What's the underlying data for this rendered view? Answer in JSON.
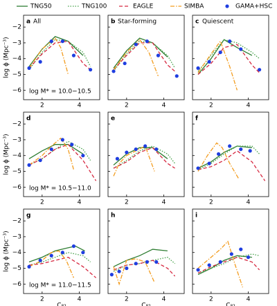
{
  "chart_data": [
    {
      "type": "line",
      "label": "a",
      "title": "All",
      "ylabel": "log ϕ (Mpc⁻³)",
      "legend": "top",
      "xlim": [
        1,
        5.1
      ],
      "ylim": [
        -6.6,
        -1.25
      ],
      "xticks": [
        2,
        4
      ],
      "yticks": [
        {
          "value": -2,
          "label": "−2"
        },
        {
          "value": -3,
          "label": "−3"
        },
        {
          "value": -4,
          "label": "−4"
        },
        {
          "value": -5,
          "label": "−5"
        },
        {
          "value": -6,
          "label": "−6"
        }
      ],
      "annotation": "log M* = 10.0−10.5",
      "series": [
        {
          "name": "TNG50",
          "color": "#2e7d32",
          "style": "solid",
          "x": [
            1.3,
            2.0,
            2.7,
            3.4,
            4.2
          ],
          "values": [
            -4.5,
            -3.4,
            -2.6,
            -2.9,
            -3.8
          ]
        },
        {
          "name": "TNG100",
          "color": "#43a047",
          "style": "dotted",
          "x": [
            1.3,
            2.0,
            2.7,
            3.4,
            4.2,
            4.6
          ],
          "values": [
            -4.7,
            -3.6,
            -2.8,
            -2.9,
            -3.6,
            -4.5
          ]
        },
        {
          "name": "EAGLE",
          "color": "#d62840",
          "style": "dashed",
          "x": [
            1.3,
            2.0,
            2.7,
            3.4,
            4.2,
            4.6
          ],
          "values": [
            -4.6,
            -3.7,
            -3.0,
            -2.9,
            -4.3,
            -4.7
          ]
        },
        {
          "name": "SIMBA",
          "color": "#f39c1e",
          "style": "dashdot",
          "x": [
            1.3,
            2.0,
            2.7,
            3.0,
            3.4
          ],
          "values": [
            -4.6,
            -3.4,
            -2.7,
            -3.3,
            -5.0
          ]
        },
        {
          "name": "GAMA+HSC",
          "color": "#1f3ee0",
          "style": "points",
          "x": [
            1.3,
            1.9,
            2.5,
            3.1,
            3.7,
            4.6
          ],
          "values": [
            -4.6,
            -4.2,
            -2.9,
            -2.9,
            -3.8,
            -4.7
          ]
        }
      ]
    },
    {
      "type": "line",
      "label": "b",
      "title": "Star-forming",
      "xlim": [
        1,
        5.1
      ],
      "ylim": [
        -6.6,
        -1.25
      ],
      "xticks": [
        2,
        4
      ],
      "yticks": [
        -2,
        -3,
        -4,
        -5,
        -6
      ],
      "series": [
        {
          "color": "#2e7d32",
          "style": "solid",
          "x": [
            1.3,
            2.0,
            2.7,
            3.4,
            4.2
          ],
          "values": [
            -4.6,
            -3.5,
            -2.7,
            -3.0,
            -3.9
          ]
        },
        {
          "color": "#43a047",
          "style": "dotted",
          "x": [
            1.3,
            2.0,
            2.7,
            3.4,
            4.2,
            4.6
          ],
          "values": [
            -4.8,
            -3.7,
            -2.9,
            -3.0,
            -3.8,
            -4.6
          ]
        },
        {
          "color": "#d62840",
          "style": "dashed",
          "x": [
            1.3,
            2.0,
            2.7,
            3.4,
            4.2,
            4.6
          ],
          "values": [
            -4.7,
            -3.8,
            -3.0,
            -3.0,
            -4.4,
            -4.8
          ]
        },
        {
          "color": "#f39c1e",
          "style": "dashdot",
          "x": [
            1.3,
            2.0,
            2.7,
            3.2,
            3.7
          ],
          "values": [
            -4.7,
            -3.6,
            -2.8,
            -3.6,
            -5.1
          ]
        },
        {
          "color": "#1f3ee0",
          "style": "points",
          "x": [
            1.3,
            1.9,
            2.5,
            3.1,
            3.7,
            4.7
          ],
          "values": [
            -4.8,
            -4.3,
            -3.1,
            -2.9,
            -3.8,
            -5.1
          ]
        }
      ]
    },
    {
      "type": "line",
      "label": "c",
      "title": "Quiescent",
      "xlim": [
        1,
        5.1
      ],
      "ylim": [
        -6.6,
        -1.25
      ],
      "xticks": [
        2,
        4
      ],
      "yticks": [
        -2,
        -3,
        -4,
        -5,
        -6
      ],
      "series": [
        {
          "color": "#2e7d32",
          "style": "solid",
          "x": [
            1.3,
            2.0,
            2.7,
            3.4,
            4.2
          ],
          "values": [
            -5.0,
            -4.0,
            -2.8,
            -3.3,
            -3.8
          ]
        },
        {
          "color": "#43a047",
          "style": "dotted",
          "x": [
            1.3,
            2.0,
            2.7,
            3.4,
            4.2,
            4.6
          ],
          "values": [
            -4.8,
            -3.8,
            -2.8,
            -3.0,
            -3.6,
            -4.0
          ]
        },
        {
          "color": "#d62840",
          "style": "dashed",
          "x": [
            1.3,
            2.0,
            2.7,
            3.4,
            4.2,
            4.6
          ],
          "values": [
            -5.0,
            -4.3,
            -3.3,
            -3.1,
            -4.4,
            -4.9
          ]
        },
        {
          "color": "#f39c1e",
          "style": "dashdot",
          "x": [
            1.3,
            2.0,
            2.5,
            3.0,
            3.4
          ],
          "values": [
            -4.9,
            -3.7,
            -2.9,
            -4.5,
            -6.0
          ]
        },
        {
          "color": "#1f3ee0",
          "style": "points",
          "x": [
            1.3,
            1.9,
            2.5,
            3.0,
            3.6,
            4.6
          ],
          "values": [
            -4.6,
            -4.2,
            -3.6,
            -2.9,
            -3.4,
            -4.7
          ]
        }
      ]
    },
    {
      "type": "line",
      "label": "d",
      "ylabel": "log ϕ (Mpc⁻³)",
      "xlim": [
        1,
        5.1
      ],
      "ylim": [
        -6.6,
        -1.25
      ],
      "xticks": [
        2,
        4
      ],
      "yticks": [
        {
          "value": -2,
          "label": "−2"
        },
        {
          "value": -3,
          "label": "−3"
        },
        {
          "value": -4,
          "label": "−4"
        },
        {
          "value": -5,
          "label": "−5"
        },
        {
          "value": -6,
          "label": "−6"
        }
      ],
      "annotation": "log M* = 10.5−11.0",
      "series": [
        {
          "color": "#2e7d32",
          "style": "solid",
          "x": [
            1.3,
            2.0,
            2.7,
            3.4,
            4.2
          ],
          "values": [
            -4.2,
            -3.7,
            -3.3,
            -3.3,
            -3.9
          ]
        },
        {
          "color": "#43a047",
          "style": "dotted",
          "x": [
            1.3,
            2.0,
            2.7,
            3.4,
            4.2,
            4.6
          ],
          "values": [
            -4.6,
            -4.2,
            -3.6,
            -3.1,
            -3.6,
            -4.3
          ]
        },
        {
          "color": "#d62840",
          "style": "dashed",
          "x": [
            1.3,
            2.0,
            2.7,
            3.4,
            4.2,
            4.9
          ],
          "values": [
            -4.6,
            -4.2,
            -3.6,
            -3.3,
            -4.3,
            -5.6
          ]
        },
        {
          "color": "#f39c1e",
          "style": "dashdot",
          "x": [
            1.3,
            2.0,
            2.5,
            3.0,
            3.4,
            3.7
          ],
          "values": [
            -4.6,
            -4.0,
            -3.4,
            -2.9,
            -3.6,
            -4.9
          ]
        },
        {
          "color": "#1f3ee0",
          "style": "points",
          "x": [
            1.3,
            1.9,
            2.5,
            3.1,
            3.6,
            4.2
          ],
          "values": [
            -4.6,
            -4.3,
            -3.6,
            -3.0,
            -3.3,
            -4.0
          ]
        }
      ]
    },
    {
      "type": "line",
      "label": "e",
      "xlim": [
        1,
        5.1
      ],
      "ylim": [
        -6.6,
        -1.25
      ],
      "xticks": [
        2,
        4
      ],
      "yticks": [
        -2,
        -3,
        -4,
        -5,
        -6
      ],
      "series": [
        {
          "color": "#2e7d32",
          "style": "solid",
          "x": [
            1.3,
            2.0,
            2.7,
            3.4,
            4.2
          ],
          "values": [
            -4.6,
            -3.9,
            -3.5,
            -3.5,
            -4.2
          ]
        },
        {
          "color": "#43a047",
          "style": "dotted",
          "x": [
            1.3,
            2.0,
            2.7,
            3.4,
            4.2,
            4.6
          ],
          "values": [
            -4.8,
            -4.3,
            -3.7,
            -3.4,
            -3.9,
            -4.5
          ]
        },
        {
          "color": "#d62840",
          "style": "dashed",
          "x": [
            1.3,
            2.0,
            2.7,
            3.4,
            4.2,
            4.6
          ],
          "values": [
            -4.8,
            -4.4,
            -3.8,
            -3.5,
            -4.5,
            -4.8
          ]
        },
        {
          "color": "#f39c1e",
          "style": "dashdot",
          "x": [
            1.3,
            1.6,
            2.0,
            2.5,
            3.0,
            3.5
          ],
          "values": [
            -5.3,
            -4.5,
            -4.0,
            -3.7,
            -3.4,
            -5.0
          ]
        },
        {
          "color": "#1f3ee0",
          "style": "points",
          "x": [
            1.5,
            2.0,
            2.5,
            3.0,
            3.6
          ],
          "values": [
            -4.2,
            -3.8,
            -3.6,
            -3.4,
            -3.6
          ]
        }
      ]
    },
    {
      "type": "line",
      "label": "f",
      "xlim": [
        1,
        5.1
      ],
      "ylim": [
        -6.6,
        -1.25
      ],
      "xticks": [
        2,
        4
      ],
      "yticks": [
        -2,
        -3,
        -4,
        -5,
        -6
      ],
      "series": [
        {
          "color": "#2e7d32",
          "style": "solid",
          "x": [
            1.3,
            2.0,
            2.7,
            3.4,
            4.2
          ],
          "values": [
            -4.8,
            -4.4,
            -3.8,
            -3.4,
            -3.5
          ]
        },
        {
          "color": "#43a047",
          "style": "dotted",
          "x": [
            1.3,
            2.0,
            2.7,
            3.4,
            4.2,
            4.6
          ],
          "values": [
            -4.9,
            -4.5,
            -3.9,
            -3.4,
            -3.4,
            -3.9
          ]
        },
        {
          "color": "#d62840",
          "style": "dashed",
          "x": [
            1.3,
            2.0,
            2.7,
            3.4,
            4.2,
            4.9
          ],
          "values": [
            -4.9,
            -4.7,
            -4.3,
            -3.7,
            -4.4,
            -5.6
          ]
        },
        {
          "color": "#f39c1e",
          "style": "dashdot",
          "x": [
            1.3,
            1.8,
            2.3,
            2.6,
            3.0,
            3.5
          ],
          "values": [
            -5.0,
            -4.0,
            -3.2,
            -3.5,
            -4.5,
            -5.5
          ]
        },
        {
          "color": "#1f3ee0",
          "style": "points",
          "x": [
            1.3,
            1.9,
            2.4,
            3.0,
            3.6,
            4.1
          ],
          "values": [
            -4.8,
            -4.5,
            -3.9,
            -3.4,
            -3.6,
            -3.7
          ]
        }
      ]
    },
    {
      "type": "line",
      "label": "g",
      "ylabel": "log ϕ (Mpc⁻³)",
      "xlabel": "C₈₂",
      "xlim": [
        1,
        5.1
      ],
      "ylim": [
        -6.6,
        -1.25
      ],
      "xticks": [
        2,
        4
      ],
      "yticks": [
        {
          "value": -2,
          "label": "−2"
        },
        {
          "value": -3,
          "label": "−3"
        },
        {
          "value": -4,
          "label": "−4"
        },
        {
          "value": -5,
          "label": "−5"
        },
        {
          "value": -6,
          "label": "−6"
        }
      ],
      "annotation": "log M* = 11.0−11.5",
      "series": [
        {
          "color": "#2e7d32",
          "style": "solid",
          "x": [
            1.3,
            2.0,
            2.7,
            3.4,
            3.8,
            4.3
          ],
          "values": [
            -4.6,
            -4.3,
            -3.9,
            -3.7,
            -3.6,
            -3.9
          ]
        },
        {
          "color": "#43a047",
          "style": "dotted",
          "x": [
            1.3,
            2.0,
            2.7,
            3.4,
            4.2,
            4.6
          ],
          "values": [
            -4.8,
            -4.6,
            -4.3,
            -4.0,
            -4.2,
            -4.6
          ]
        },
        {
          "color": "#d62840",
          "style": "dashed",
          "x": [
            1.3,
            2.0,
            2.7,
            3.4,
            4.2,
            4.9
          ],
          "values": [
            -4.8,
            -4.7,
            -4.5,
            -4.3,
            -4.9,
            -5.6
          ]
        },
        {
          "color": "#f39c1e",
          "style": "dashdot",
          "x": [
            1.3,
            2.0,
            2.5,
            2.9,
            3.3,
            3.7
          ],
          "values": [
            -4.9,
            -4.5,
            -4.0,
            -3.9,
            -4.5,
            -5.6
          ]
        },
        {
          "color": "#1f3ee0",
          "style": "points",
          "x": [
            1.3,
            1.9,
            2.5,
            3.1,
            3.7,
            4.2
          ],
          "values": [
            -4.9,
            -4.5,
            -4.2,
            -4.0,
            -3.6,
            -4.0
          ]
        }
      ]
    },
    {
      "type": "line",
      "label": "h",
      "xlabel": "C₈₂",
      "xlim": [
        1,
        5.1
      ],
      "ylim": [
        -6.6,
        -1.25
      ],
      "xticks": [
        2,
        4
      ],
      "yticks": [
        -2,
        -3,
        -4,
        -5,
        -6
      ],
      "series": [
        {
          "color": "#2e7d32",
          "style": "solid",
          "x": [
            1.3,
            2.0,
            2.7,
            3.4,
            4.2
          ],
          "values": [
            -4.9,
            -4.5,
            -4.2,
            -3.8,
            -3.9
          ]
        },
        {
          "color": "#43a047",
          "style": "dotted",
          "x": [
            1.3,
            2.0,
            2.7,
            3.4,
            4.2,
            4.6
          ],
          "values": [
            -5.2,
            -4.8,
            -4.7,
            -4.5,
            -4.3,
            -4.7
          ]
        },
        {
          "color": "#d62840",
          "style": "dashed",
          "x": [
            1.3,
            2.0,
            2.7,
            3.4,
            4.2,
            4.6
          ],
          "values": [
            -5.1,
            -4.8,
            -4.7,
            -4.5,
            -5.0,
            -5.5
          ]
        },
        {
          "color": "#f39c1e",
          "style": "dashdot",
          "x": [
            1.3,
            1.6,
            2.0,
            2.5,
            3.0,
            3.5
          ],
          "values": [
            -4.9,
            -6.0,
            -4.5,
            -4.4,
            -4.6,
            -5.9
          ]
        },
        {
          "color": "#1f3ee0",
          "style": "points",
          "x": [
            1.2,
            1.6,
            2.0,
            2.5,
            3.1,
            3.6
          ],
          "values": [
            -5.4,
            -5.2,
            -5.0,
            -4.7,
            -4.6,
            -4.6
          ]
        }
      ]
    },
    {
      "type": "line",
      "label": "i",
      "xlabel": "C₈₂",
      "xlim": [
        1,
        5.1
      ],
      "ylim": [
        -6.6,
        -1.25
      ],
      "xticks": [
        2,
        4
      ],
      "yticks": [
        -2,
        -3,
        -4,
        -5,
        -6
      ],
      "series": [
        {
          "color": "#2e7d32",
          "style": "solid",
          "x": [
            1.3,
            2.0,
            2.7,
            3.4,
            4.2
          ],
          "values": [
            -5.4,
            -5.0,
            -4.5,
            -4.2,
            -4.3
          ]
        },
        {
          "color": "#43a047",
          "style": "dotted",
          "x": [
            1.3,
            2.0,
            2.7,
            3.4,
            4.2,
            4.6
          ],
          "values": [
            -5.3,
            -5.0,
            -4.7,
            -4.3,
            -4.1,
            -4.2
          ]
        },
        {
          "color": "#d62840",
          "style": "dashed",
          "x": [
            1.3,
            2.0,
            2.7,
            3.4,
            4.2,
            4.6
          ],
          "values": [
            -5.3,
            -4.9,
            -4.6,
            -4.3,
            -4.6,
            -5.1
          ]
        },
        {
          "color": "#f39c1e",
          "style": "dashdot",
          "x": [
            1.3,
            2.0,
            2.5,
            2.9,
            3.3,
            3.7
          ],
          "values": [
            -5.0,
            -4.3,
            -3.8,
            -3.3,
            -4.8,
            -6.2
          ]
        },
        {
          "color": "#1f3ee0",
          "style": "points",
          "x": [
            1.3,
            1.9,
            2.5,
            3.1,
            3.6,
            4.0
          ],
          "values": [
            -5.1,
            -4.8,
            -4.6,
            -4.1,
            -3.8,
            -4.3
          ]
        }
      ]
    }
  ]
}
